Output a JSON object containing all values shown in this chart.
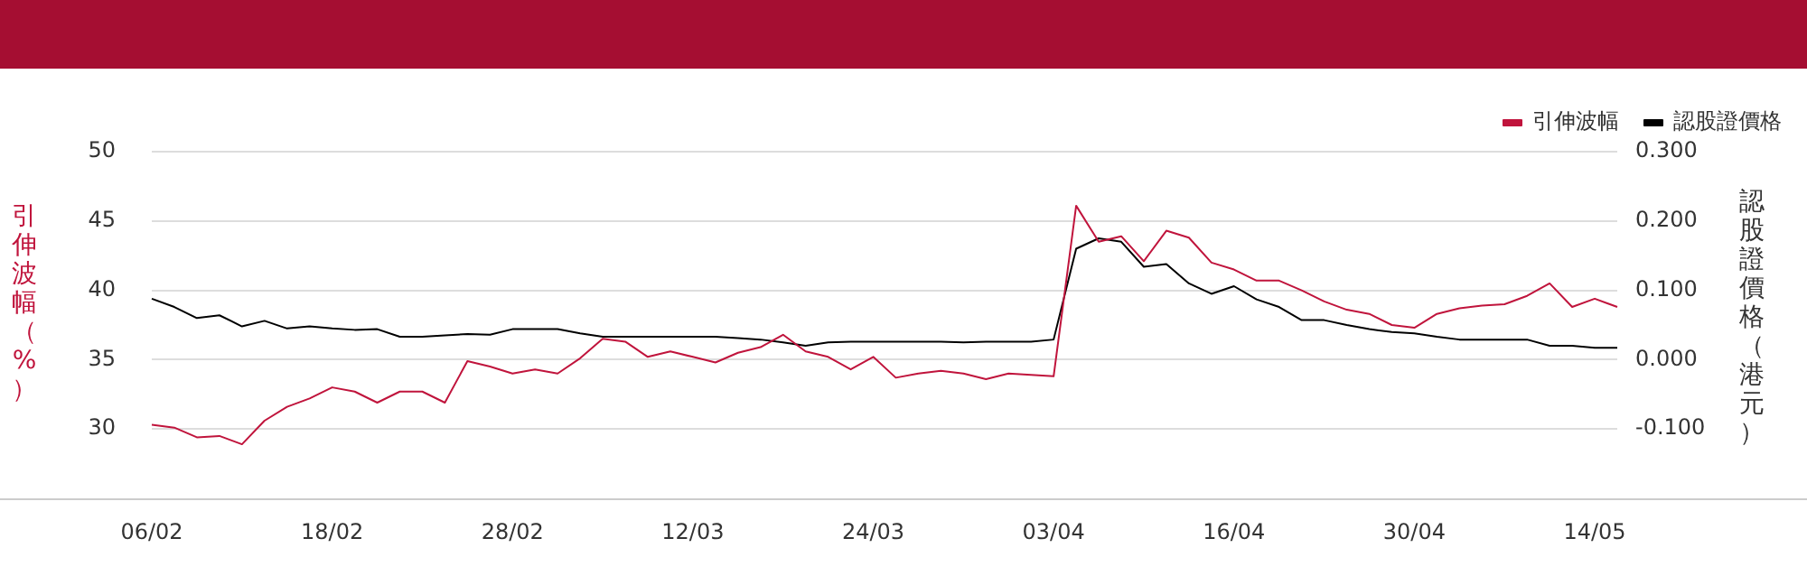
{
  "chart_data": {
    "type": "line",
    "ylabel": "引伸波幅（%）",
    "y2label": "認股證價格（港元）",
    "categories": [
      "06/02",
      null,
      null,
      null,
      null,
      null,
      null,
      null,
      "18/02",
      null,
      null,
      null,
      null,
      null,
      null,
      null,
      "28/02",
      null,
      null,
      null,
      null,
      null,
      null,
      null,
      "12/03",
      null,
      null,
      null,
      null,
      null,
      null,
      null,
      "24/03",
      null,
      null,
      null,
      null,
      null,
      null,
      null,
      "03/04",
      null,
      null,
      null,
      null,
      null,
      null,
      null,
      "16/04",
      null,
      null,
      null,
      null,
      null,
      null,
      null,
      "30/04",
      null,
      null,
      null,
      null,
      null,
      null,
      null,
      "14/05",
      null
    ],
    "series": [
      {
        "name": "引伸波幅",
        "color": "#c0143c",
        "values": [
          30.3,
          30.1,
          29.4,
          29.5,
          28.9,
          30.6,
          31.6,
          32.2,
          33.0,
          32.7,
          31.9,
          32.7,
          32.7,
          31.9,
          34.9,
          34.5,
          34.0,
          34.3,
          34.0,
          35.1,
          36.5,
          36.3,
          35.2,
          35.6,
          35.2,
          34.8,
          35.5,
          35.9,
          36.8,
          35.6,
          35.2,
          34.3,
          35.2,
          33.7,
          34.0,
          34.2,
          34.0,
          33.6,
          34.0,
          33.9,
          33.8,
          46.1,
          43.5,
          43.9,
          42.1,
          44.3,
          43.8,
          42.0,
          41.5,
          40.7,
          40.7,
          40.0,
          39.2,
          38.6,
          38.3,
          37.5,
          37.3,
          38.3,
          38.7,
          38.9,
          39.0,
          39.6,
          40.5,
          38.8,
          39.4,
          38.8
        ]
      },
      {
        "name": "認股證價格",
        "color": "#000000",
        "axis": "y2",
        "values": [
          0.088,
          0.076,
          0.06,
          0.064,
          0.048,
          0.056,
          0.045,
          0.048,
          0.045,
          0.043,
          0.044,
          0.033,
          0.033,
          0.035,
          0.037,
          0.036,
          0.044,
          0.044,
          0.044,
          0.038,
          0.033,
          0.033,
          0.033,
          0.033,
          0.033,
          0.033,
          0.031,
          0.029,
          0.025,
          0.02,
          0.025,
          0.026,
          0.026,
          0.026,
          0.026,
          0.026,
          0.025,
          0.026,
          0.026,
          0.026,
          0.029,
          0.16,
          0.175,
          0.17,
          0.134,
          0.138,
          0.11,
          0.095,
          0.106,
          0.087,
          0.076,
          0.057,
          0.057,
          0.05,
          0.044,
          0.04,
          0.038,
          0.033,
          0.029,
          0.029,
          0.029,
          0.029,
          0.02,
          0.02,
          0.017,
          0.017
        ]
      }
    ],
    "ylim": [
      25,
      50
    ],
    "yticks": [
      30,
      35,
      40,
      45,
      50
    ],
    "y2lim": [
      -0.2,
      0.3
    ],
    "y2ticks": [
      {
        "value": -0.1,
        "label": "-0.100"
      },
      {
        "value": 0,
        "label": "0.000"
      },
      {
        "value": 0.1,
        "label": "0.100"
      },
      {
        "value": 0.2,
        "label": "0.200"
      },
      {
        "value": 0.3,
        "label": "0.300"
      }
    ],
    "grid": "y",
    "legend": "top right",
    "marker": "none",
    "line_style": "solid"
  }
}
